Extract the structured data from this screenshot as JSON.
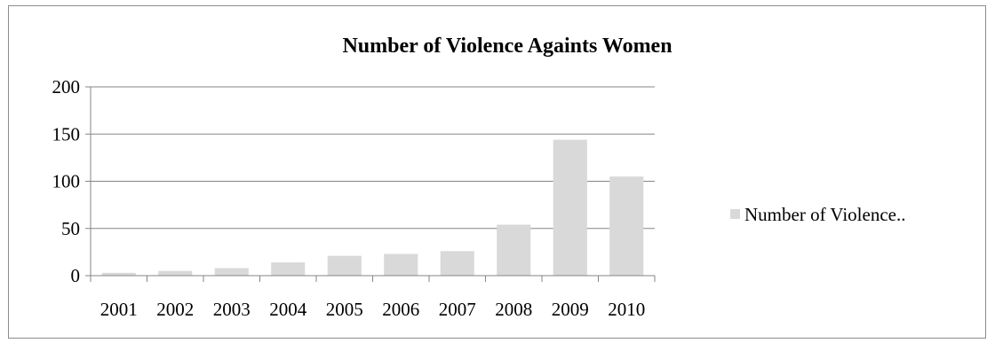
{
  "chart_data": {
    "type": "bar",
    "title": "Number of Violence Againts Women",
    "xlabel": "",
    "ylabel": "",
    "categories": [
      "2001",
      "2002",
      "2003",
      "2004",
      "2005",
      "2006",
      "2007",
      "2008",
      "2009",
      "2010"
    ],
    "series": [
      {
        "name": "Number of Violence..",
        "values": [
          3,
          5,
          8,
          14,
          21,
          23,
          26,
          54,
          144,
          105
        ],
        "color": "#d9d9d9"
      }
    ],
    "ylim": [
      0,
      200
    ],
    "yticks": [
      "0",
      "50",
      "100",
      "150",
      "200"
    ],
    "ytick_values": [
      0,
      50,
      100,
      150,
      200
    ],
    "grid": true,
    "legend_position": "right"
  }
}
